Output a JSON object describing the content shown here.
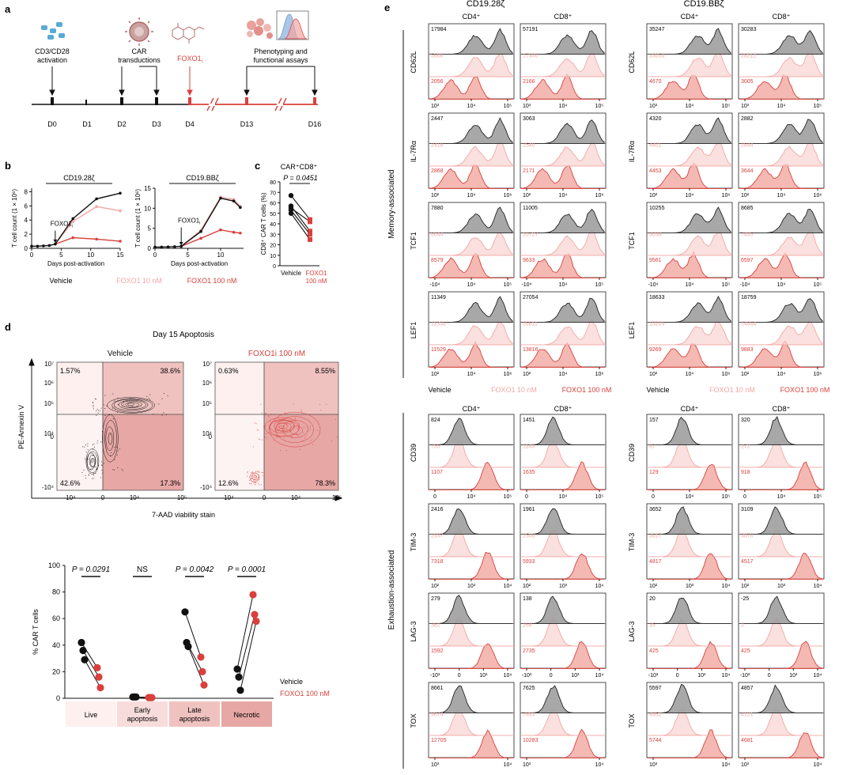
{
  "colors": {
    "vehicle": "#111111",
    "foxo10": "#f2a7a5",
    "foxo100": "#d9403c",
    "fill10": "#f8d5d3",
    "fill100": "#f1a19a",
    "gray": "#9e9e9e",
    "pastel1": "#fdf0ef",
    "pastel2": "#f7dcdb",
    "pastel3": "#efc2c0",
    "pastel4": "#e6a7a5"
  },
  "panel_a": {
    "label": "a",
    "events": [
      {
        "day": "D0",
        "text1": "CD3/CD28",
        "text2": "activation",
        "icon": "beads-icon"
      },
      {
        "day": "D2",
        "text1": "CAR",
        "text2": "transductions",
        "icon": "virus-icon"
      },
      {
        "day": "D4",
        "text1": "FOXO1",
        "sub": "i",
        "icon": "molecule-icon"
      },
      {
        "day": "D13",
        "text1": "Phenotyping and",
        "text2": "functional assays",
        "icon": "cells-histogram-icon"
      }
    ],
    "days": [
      "D0",
      "D1",
      "D2",
      "D3",
      "D4",
      "D13",
      "D16"
    ]
  },
  "panel_b": {
    "label": "b",
    "ylabel": "T cell count (1 × 10⁶)",
    "xlabel": "Days post-activation",
    "annotation": "FOXO1",
    "annotation_sub": "i",
    "legend": [
      "Vehicle",
      "FOXO1",
      "10 nM",
      "FOXO1",
      "100 nM"
    ],
    "charts": [
      {
        "title": "CD19.28ζ",
        "xticks": [
          0,
          5,
          10,
          15
        ],
        "yticks": [
          0,
          2,
          4,
          6,
          8
        ],
        "ylim": [
          0,
          8.5
        ],
        "xlim": [
          0,
          15
        ],
        "series": [
          {
            "name": "Vehicle",
            "x": [
              0,
              1,
              2,
              3,
              4,
              7,
              11,
              15
            ],
            "y": [
              0.3,
              0.3,
              0.35,
              0.4,
              0.6,
              4.2,
              7.0,
              7.8
            ]
          },
          {
            "name": "FOXO1i 10 nM",
            "x": [
              4,
              7,
              11,
              15
            ],
            "y": [
              0.6,
              3.8,
              5.9,
              5.3
            ]
          },
          {
            "name": "FOXO1i 100 nM",
            "x": [
              4,
              7,
              11,
              15
            ],
            "y": [
              0.6,
              1.5,
              1.3,
              1.0
            ]
          }
        ]
      },
      {
        "title": "CD19.BBζ",
        "xticks": [
          0,
          5,
          10
        ],
        "yticks": [
          0,
          5,
          10,
          15
        ],
        "ylim": [
          0,
          15
        ],
        "xlim": [
          0,
          13.5
        ],
        "series": [
          {
            "name": "Vehicle",
            "x": [
              0,
              1,
              2,
              3,
              4,
              7,
              10,
              12,
              13
            ],
            "y": [
              0.3,
              0.3,
              0.35,
              0.4,
              0.5,
              4.2,
              12.5,
              11.8,
              10.2
            ]
          },
          {
            "name": "FOXO1i 10 nM",
            "x": [
              4,
              7,
              10,
              12,
              13
            ],
            "y": [
              0.5,
              4.5,
              12.8,
              12.2,
              10.5
            ]
          },
          {
            "name": "FOXO1i 100 nM",
            "x": [
              4,
              7,
              10,
              12,
              13
            ],
            "y": [
              0.5,
              2.5,
              4.6,
              4.0,
              3.8
            ]
          }
        ]
      }
    ]
  },
  "panel_c": {
    "label": "c",
    "title": "CAR⁺CD8⁺",
    "pval": "P = 0.0451",
    "ylabel": "CD8⁺ CAR T cells (%)",
    "yticks": [
      0,
      10,
      20,
      30,
      40,
      50,
      60,
      70,
      80
    ],
    "ylim": [
      0,
      80
    ],
    "categories": [
      "Vehicle",
      "FOXO1",
      "100 nM"
    ],
    "pairs": [
      [
        67,
        44
      ],
      [
        57,
        33
      ],
      [
        53,
        30
      ],
      [
        50,
        25
      ],
      [
        55,
        42
      ]
    ]
  },
  "panel_d": {
    "label": "d",
    "title": "Day 15 Apoptosis",
    "ylabel": "PE-Annexin V",
    "xlabel": "7-AAD viability stain",
    "plots": [
      {
        "title": "Vehicle",
        "q": [
          "1.57%",
          "38.6%",
          "42.6%",
          "17.3%"
        ]
      },
      {
        "title": "FOXO1i 100 nM",
        "q": [
          "0.63%",
          "8.55%",
          "12.6%",
          "78.3%"
        ]
      }
    ],
    "yticks": [
      "10⁷",
      "10⁶",
      "10⁵",
      "10⁴",
      "0",
      "-10⁴"
    ],
    "xticks": [
      "-10⁴",
      "0",
      "10⁴",
      "10⁵"
    ],
    "bottom": {
      "ylabel": "% CAR T cells",
      "yticks": [
        0,
        20,
        40,
        60,
        80,
        100
      ],
      "ylim": [
        0,
        100
      ],
      "categories": [
        "Live",
        "Early",
        "apoptosis",
        "Late",
        "apoptosis",
        "Necrotic"
      ],
      "pvals": [
        "P = 0.0291",
        "NS",
        "P = 0.0042",
        "P = 0.0001"
      ],
      "groups": [
        {
          "vehicle": [
            42,
            36,
            29
          ],
          "foxo": [
            23,
            16,
            8
          ]
        },
        {
          "vehicle": [
            1,
            1,
            1
          ],
          "foxo": [
            0.5,
            0.5,
            0.5
          ]
        },
        {
          "vehicle": [
            65,
            42,
            39
          ],
          "foxo": [
            31,
            20,
            10
          ]
        },
        {
          "vehicle": [
            22,
            16,
            6
          ],
          "foxo": [
            78,
            63,
            58
          ]
        }
      ],
      "legend": [
        "Vehicle",
        "FOXO1",
        "100 nM"
      ]
    }
  },
  "panel_e": {
    "label": "e",
    "constructs": [
      "CD19.28ζ",
      "CD19.BBζ"
    ],
    "cell_types": [
      "CD4⁺",
      "CD8⁺"
    ],
    "group_labels": [
      "Memory-associated",
      "Exhaustion-associated"
    ],
    "memory": {
      "markers": [
        "CD62L",
        "IL-7Rα",
        "TCF1",
        "LEF1"
      ],
      "xticks": [
        [
          "10³",
          "10⁴",
          "10⁵"
        ],
        [
          "10²",
          "10⁴",
          "10⁶"
        ],
        [
          "-10⁴",
          "10⁴",
          "10⁵"
        ],
        [
          "10²",
          "10⁴",
          "10⁶"
        ]
      ],
      "values": [
        [
          [
            "17984",
            "5608",
            "2056"
          ],
          [
            "57191",
            "17300",
            "2166"
          ],
          [
            "35247",
            "33059",
            "4670"
          ],
          [
            "30283",
            "28212",
            "3005"
          ]
        ],
        [
          [
            "2447",
            "2418",
            "2868"
          ],
          [
            "3063",
            "2540",
            "2171"
          ],
          [
            "4320",
            "4401",
            "4453"
          ],
          [
            "2882",
            "2844",
            "3644"
          ]
        ],
        [
          [
            "7880",
            "8044",
            "8579"
          ],
          [
            "11005",
            "10727",
            "9633"
          ],
          [
            "10255",
            "9038",
            "9561"
          ],
          [
            "8685",
            "7495",
            "6597"
          ]
        ],
        [
          [
            "11349",
            "11336",
            "11529"
          ],
          [
            "27054",
            "26611",
            "13816"
          ],
          [
            "18633",
            "13209",
            "9269"
          ],
          [
            "18759",
            "14864",
            "9883"
          ]
        ]
      ],
      "legend": [
        "Vehicle",
        "FOXO1",
        "10 nM",
        "FOXO1",
        "100 nM"
      ]
    },
    "exhaustion": {
      "markers": [
        "CD39",
        "TIM-3",
        "LAG-3",
        "TOX"
      ],
      "xticks": [
        [
          "0",
          "10⁴",
          "10⁵"
        ],
        [
          "10²",
          "10³",
          "10⁴"
        ],
        [
          "-10³",
          "0",
          "10³",
          "10⁴"
        ],
        [
          "10³",
          "10⁴"
        ]
      ],
      "values": [
        [
          [
            "824",
            "755",
            "1107"
          ],
          [
            "1451",
            "1149",
            "1635"
          ],
          [
            "157",
            "87",
            "129"
          ],
          [
            "320",
            "272",
            "918"
          ]
        ],
        [
          [
            "2416",
            "2937",
            "7318"
          ],
          [
            "1961",
            "2508",
            "5933"
          ],
          [
            "3652",
            "3617",
            "4817"
          ],
          [
            "3109",
            "3076",
            "4517"
          ]
        ],
        [
          [
            "279",
            "362",
            "1592"
          ],
          [
            "138",
            "268",
            "2735"
          ],
          [
            "20",
            "35",
            "425"
          ],
          [
            "-25",
            "2",
            "425"
          ]
        ],
        [
          [
            "8661",
            "9674",
            "12705"
          ],
          [
            "7625",
            "7893",
            "10283"
          ],
          [
            "5597",
            "4952",
            "5744"
          ],
          [
            "4857",
            "4121",
            "4681"
          ]
        ]
      ]
    }
  }
}
